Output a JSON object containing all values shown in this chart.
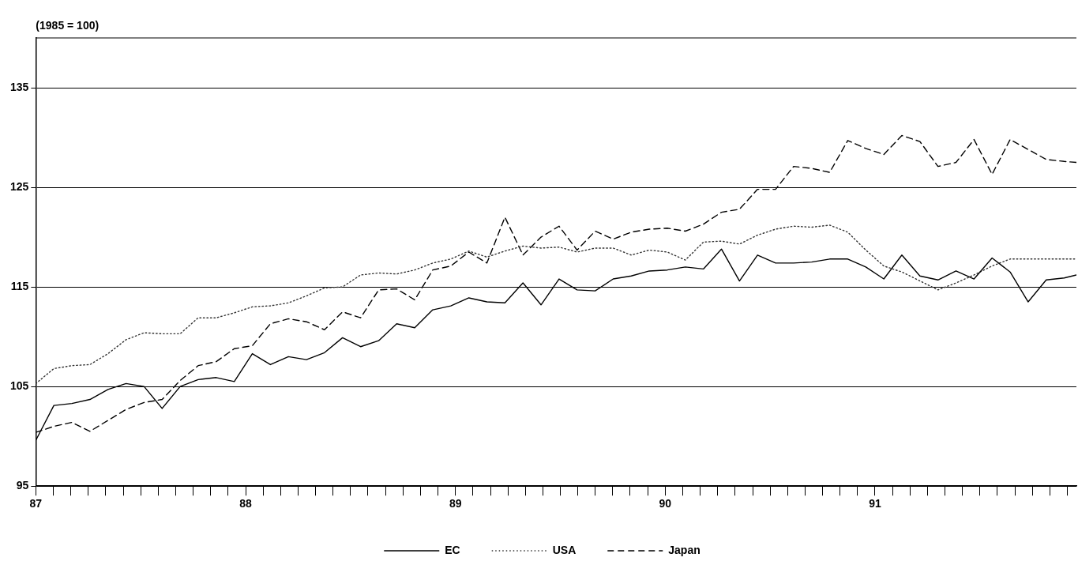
{
  "chart_data": {
    "type": "line",
    "ylabel": "(1985 = 100)",
    "x": [
      87,
      87.086,
      87.172,
      87.258,
      87.344,
      87.43,
      87.516,
      87.602,
      87.688,
      87.774,
      87.86,
      87.946,
      88.032,
      88.118,
      88.204,
      88.29,
      88.376,
      88.462,
      88.548,
      88.634,
      88.72,
      88.806,
      88.892,
      88.978,
      89.064,
      89.15,
      89.236,
      89.322,
      89.408,
      89.494,
      89.58,
      89.666,
      89.752,
      89.838,
      89.924,
      90.01,
      90.096,
      90.182,
      90.268,
      90.354,
      90.44,
      90.526,
      90.612,
      90.698,
      90.784,
      90.87,
      90.956,
      91.042,
      91.128,
      91.214,
      91.3,
      91.386,
      91.472,
      91.558,
      91.644,
      91.73,
      91.816,
      91.902,
      91.96
    ],
    "series": [
      {
        "name": "EC",
        "color": "#000000",
        "line_style": "solid",
        "values": [
          99.6,
          103.1,
          103.3,
          103.7,
          104.7,
          105.3,
          105.0,
          102.8,
          105.0,
          105.7,
          105.9,
          105.5,
          108.3,
          107.2,
          108.0,
          107.7,
          108.4,
          109.9,
          109.0,
          109.6,
          111.3,
          110.9,
          112.7,
          113.1,
          113.9,
          113.5,
          113.4,
          115.4,
          113.2,
          115.8,
          114.7,
          114.6,
          115.8,
          116.1,
          116.6,
          116.7,
          117.0,
          116.8,
          118.8,
          115.6,
          118.2,
          117.4,
          117.4,
          117.5,
          117.8,
          117.8,
          117.0,
          115.8,
          118.2,
          116.1,
          115.7,
          116.6,
          115.8,
          117.9,
          116.5,
          113.5,
          115.7,
          115.9,
          116.2
        ]
      },
      {
        "name": "USA",
        "color": "#333333",
        "line_style": "dotted",
        "values": [
          105.3,
          106.8,
          107.1,
          107.2,
          108.3,
          109.7,
          110.4,
          110.3,
          110.3,
          111.9,
          111.9,
          112.4,
          113.0,
          113.1,
          113.4,
          114.1,
          114.9,
          115.0,
          116.2,
          116.4,
          116.3,
          116.7,
          117.4,
          117.8,
          118.6,
          118.0,
          118.6,
          119.1,
          118.9,
          119.0,
          118.5,
          118.9,
          118.9,
          118.2,
          118.7,
          118.5,
          117.7,
          119.5,
          119.6,
          119.3,
          120.2,
          120.8,
          121.1,
          121.0,
          121.2,
          120.5,
          118.7,
          117.1,
          116.5,
          115.6,
          114.7,
          115.4,
          116.2,
          117.1,
          117.8,
          117.8,
          117.8,
          117.8,
          117.8
        ]
      },
      {
        "name": "Japan",
        "color": "#000000",
        "line_style": "dashed",
        "values": [
          100.4,
          101.0,
          101.4,
          100.5,
          101.6,
          102.7,
          103.4,
          103.7,
          105.6,
          107.1,
          107.5,
          108.8,
          109.1,
          111.3,
          111.8,
          111.5,
          110.7,
          112.5,
          111.9,
          114.7,
          114.8,
          113.7,
          116.7,
          117.1,
          118.5,
          117.4,
          122.0,
          118.2,
          120.0,
          121.1,
          118.7,
          120.6,
          119.8,
          120.5,
          120.8,
          120.9,
          120.6,
          121.3,
          122.5,
          122.8,
          124.8,
          124.8,
          127.1,
          126.9,
          126.5,
          129.7,
          128.9,
          128.3,
          130.2,
          129.6,
          127.1,
          127.5,
          129.8,
          126.3,
          129.8,
          128.8,
          127.8,
          127.6,
          127.5
        ]
      }
    ],
    "xlim": [
      87,
      91.96
    ],
    "xticks": [
      87,
      {
        "value": 87.083,
        "label": null
      },
      {
        "value": 87.167,
        "label": null
      },
      {
        "value": 87.25,
        "label": null
      },
      {
        "value": 87.333,
        "label": null
      },
      {
        "value": 87.417,
        "label": null
      },
      {
        "value": 87.5,
        "label": null
      },
      {
        "value": 87.583,
        "label": null
      },
      {
        "value": 87.667,
        "label": null
      },
      {
        "value": 87.75,
        "label": null
      },
      {
        "value": 87.833,
        "label": null
      },
      {
        "value": 87.917,
        "label": null
      },
      88,
      {
        "value": 88.083,
        "label": null
      },
      {
        "value": 88.167,
        "label": null
      },
      {
        "value": 88.25,
        "label": null
      },
      {
        "value": 88.333,
        "label": null
      },
      {
        "value": 88.417,
        "label": null
      },
      {
        "value": 88.5,
        "label": null
      },
      {
        "value": 88.583,
        "label": null
      },
      {
        "value": 88.667,
        "label": null
      },
      {
        "value": 88.75,
        "label": null
      },
      {
        "value": 88.833,
        "label": null
      },
      {
        "value": 88.917,
        "label": null
      },
      89,
      {
        "value": 89.083,
        "label": null
      },
      {
        "value": 89.167,
        "label": null
      },
      {
        "value": 89.25,
        "label": null
      },
      {
        "value": 89.333,
        "label": null
      },
      {
        "value": 89.417,
        "label": null
      },
      {
        "value": 89.5,
        "label": null
      },
      {
        "value": 89.583,
        "label": null
      },
      {
        "value": 89.667,
        "label": null
      },
      {
        "value": 89.75,
        "label": null
      },
      {
        "value": 89.833,
        "label": null
      },
      {
        "value": 89.917,
        "label": null
      },
      90,
      {
        "value": 90.083,
        "label": null
      },
      {
        "value": 90.167,
        "label": null
      },
      {
        "value": 90.25,
        "label": null
      },
      {
        "value": 90.333,
        "label": null
      },
      {
        "value": 90.417,
        "label": null
      },
      {
        "value": 90.5,
        "label": null
      },
      {
        "value": 90.583,
        "label": null
      },
      {
        "value": 90.667,
        "label": null
      },
      {
        "value": 90.75,
        "label": null
      },
      {
        "value": 90.833,
        "label": null
      },
      {
        "value": 90.917,
        "label": null
      },
      91,
      {
        "value": 91.083,
        "label": null
      },
      {
        "value": 91.167,
        "label": null
      },
      {
        "value": 91.25,
        "label": null
      },
      {
        "value": 91.333,
        "label": null
      },
      {
        "value": 91.417,
        "label": null
      },
      {
        "value": 91.5,
        "label": null
      },
      {
        "value": 91.583,
        "label": null
      },
      {
        "value": 91.667,
        "label": null
      },
      {
        "value": 91.75,
        "label": null
      },
      {
        "value": 91.833,
        "label": null
      },
      {
        "value": 91.917,
        "label": null
      }
    ],
    "ylim": [
      95,
      140
    ],
    "yticks": [
      95,
      105,
      115,
      125,
      135
    ],
    "grid": "y",
    "legend": "bottom",
    "marker": "none"
  }
}
